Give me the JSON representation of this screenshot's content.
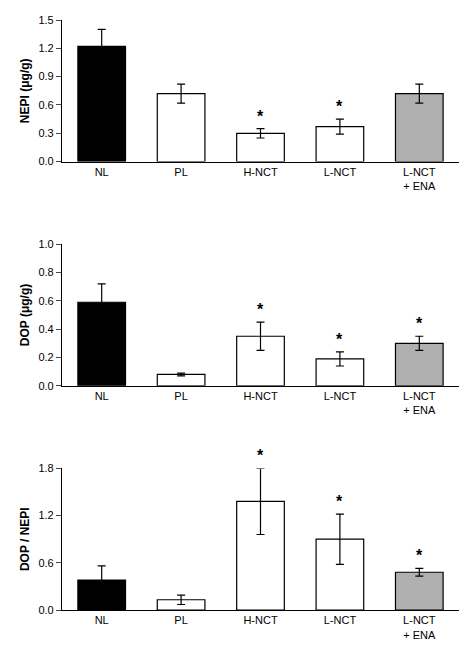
{
  "chart_data": [
    {
      "type": "bar",
      "categories": [
        "NL",
        "PL",
        "H-NCT",
        "L-NCT",
        "L-NCT\n+ ENA"
      ],
      "ylabel": "NEPI (μg/g)",
      "values": [
        1.22,
        0.72,
        0.3,
        0.37,
        0.72
      ],
      "errors": [
        0.18,
        0.1,
        0.05,
        0.08,
        0.1
      ],
      "colors": [
        "#000000",
        "#ffffff",
        "#ffffff",
        "#ffffff",
        "#b0b0b0"
      ],
      "ylim": [
        0,
        1.5
      ],
      "yticks": [
        {
          "value": 0.0,
          "label": "0.0"
        },
        0.3,
        0.6,
        0.9,
        1.2,
        1.5
      ],
      "grid": false,
      "annotations": [
        {
          "x": 2,
          "text": "*"
        },
        {
          "x": 3,
          "text": "*"
        }
      ]
    },
    {
      "type": "bar",
      "categories": [
        "NL",
        "PL",
        "H-NCT",
        "L-NCT",
        "L-NCT\n+ ENA"
      ],
      "ylabel": "DOP (μg/g)",
      "values": [
        0.59,
        0.08,
        0.35,
        0.19,
        0.3
      ],
      "errors": [
        0.13,
        0.01,
        0.1,
        0.05,
        0.05
      ],
      "colors": [
        "#000000",
        "#ffffff",
        "#ffffff",
        "#ffffff",
        "#b0b0b0"
      ],
      "ylim": [
        0,
        1.0
      ],
      "yticks": [
        {
          "value": 0.0,
          "label": "0.0"
        },
        0.2,
        0.4,
        0.6,
        0.8,
        {
          "value": 1.0,
          "label": "1.0"
        }
      ],
      "grid": false,
      "annotations": [
        {
          "x": 2,
          "text": "*"
        },
        {
          "x": 3,
          "text": "*"
        },
        {
          "x": 4,
          "text": "*"
        }
      ]
    },
    {
      "type": "bar",
      "categories": [
        "NL",
        "PL",
        "H-NCT",
        "L-NCT",
        "L-NCT\n+ ENA"
      ],
      "ylabel": "DOP / NEPI",
      "values": [
        0.38,
        0.13,
        1.38,
        0.9,
        0.48
      ],
      "errors": [
        0.18,
        0.06,
        0.42,
        0.32,
        0.05
      ],
      "colors": [
        "#000000",
        "#ffffff",
        "#ffffff",
        "#ffffff",
        "#b0b0b0"
      ],
      "ylim": [
        0,
        1.8
      ],
      "yticks": [
        {
          "value": 0.0,
          "label": "0.0"
        },
        0.6,
        1.2,
        1.8
      ],
      "grid": false,
      "annotations": [
        {
          "x": 2,
          "text": "*"
        },
        {
          "x": 3,
          "text": "*"
        },
        {
          "x": 4,
          "text": "*"
        }
      ]
    }
  ]
}
